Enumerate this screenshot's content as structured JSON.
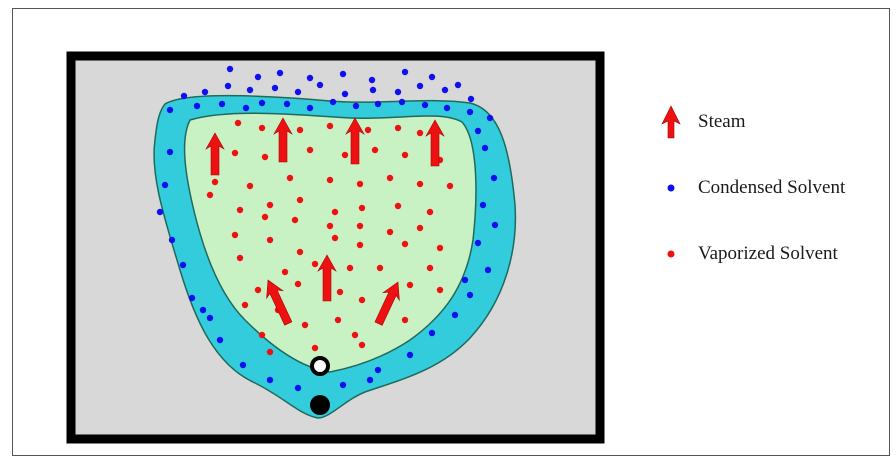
{
  "figure": {
    "colors": {
      "chamber_border": "#000000",
      "chamber_fill": "#d8d8d8",
      "solvent_band": "#33ccdd",
      "core_fill": "#c9f2c4",
      "core_outline": "#1f6a5a",
      "arrow": "#ee1111",
      "condensed_dot": "#1010ee",
      "vaporized_dot": "#ee1111"
    },
    "icons": {
      "steam": "red-up-arrow",
      "condensed": "blue-dot",
      "vaporized": "red-dot",
      "injector": "white-ring",
      "producer": "black-circle"
    }
  },
  "legend": {
    "items": [
      {
        "label": "Steam",
        "symbol": "steam-arrow-icon"
      },
      {
        "label": "Condensed Solvent",
        "symbol": "blue-dot-icon"
      },
      {
        "label": "Vaporized Solvent",
        "symbol": "red-dot-icon"
      }
    ]
  }
}
